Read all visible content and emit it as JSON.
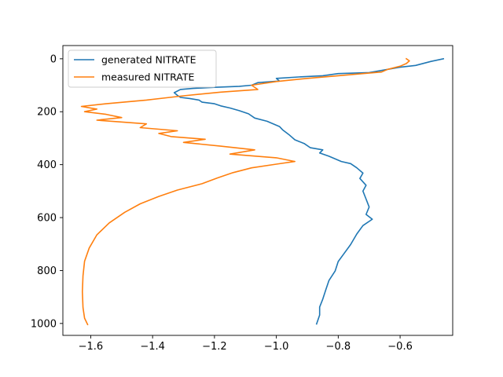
{
  "chart_data": {
    "type": "line",
    "title": "",
    "xlabel": "",
    "ylabel": "",
    "xlim": [
      -1.69,
      -0.43
    ],
    "ylim": [
      1045,
      -50
    ],
    "y_inverted": true,
    "grid": false,
    "legend_position": "top-left",
    "xticks": [
      -1.6,
      -1.4,
      -1.2,
      -1.0,
      -0.8,
      -0.6
    ],
    "xtick_labels": [
      "−1.6",
      "−1.4",
      "−1.2",
      "−1.0",
      "−0.8",
      "−0.6"
    ],
    "yticks": [
      0,
      200,
      400,
      600,
      800,
      1000
    ],
    "ytick_labels": [
      "0",
      "200",
      "400",
      "600",
      "800",
      "1000"
    ],
    "series": [
      {
        "name": "generated NITRATE",
        "color": "#1f77b4",
        "points": [
          [
            -0.46,
            0
          ],
          [
            -0.5,
            10
          ],
          [
            -0.55,
            25
          ],
          [
            -0.6,
            32
          ],
          [
            -0.64,
            40
          ],
          [
            -0.7,
            52
          ],
          [
            -0.8,
            56
          ],
          [
            -0.85,
            64
          ],
          [
            -0.92,
            68
          ],
          [
            -1.0,
            74
          ],
          [
            -0.99,
            84
          ],
          [
            -1.06,
            90
          ],
          [
            -1.08,
            100
          ],
          [
            -1.12,
            104
          ],
          [
            -1.2,
            108
          ],
          [
            -1.27,
            112
          ],
          [
            -1.31,
            116
          ],
          [
            -1.33,
            128
          ],
          [
            -1.32,
            138
          ],
          [
            -1.31,
            146
          ],
          [
            -1.28,
            150
          ],
          [
            -1.25,
            156
          ],
          [
            -1.24,
            164
          ],
          [
            -1.2,
            170
          ],
          [
            -1.18,
            178
          ],
          [
            -1.15,
            186
          ],
          [
            -1.12,
            196
          ],
          [
            -1.09,
            208
          ],
          [
            -1.07,
            224
          ],
          [
            -1.03,
            236
          ],
          [
            -0.99,
            256
          ],
          [
            -0.98,
            268
          ],
          [
            -0.96,
            286
          ],
          [
            -0.94,
            306
          ],
          [
            -0.91,
            320
          ],
          [
            -0.89,
            336
          ],
          [
            -0.85,
            344
          ],
          [
            -0.86,
            356
          ],
          [
            -0.83,
            368
          ],
          [
            -0.79,
            388
          ],
          [
            -0.76,
            396
          ],
          [
            -0.74,
            412
          ],
          [
            -0.72,
            432
          ],
          [
            -0.73,
            452
          ],
          [
            -0.71,
            478
          ],
          [
            -0.72,
            500
          ],
          [
            -0.71,
            530
          ],
          [
            -0.7,
            560
          ],
          [
            -0.71,
            588
          ],
          [
            -0.69,
            606
          ],
          [
            -0.72,
            630
          ],
          [
            -0.74,
            662
          ],
          [
            -0.76,
            702
          ],
          [
            -0.78,
            734
          ],
          [
            -0.8,
            766
          ],
          [
            -0.81,
            802
          ],
          [
            -0.83,
            838
          ],
          [
            -0.84,
            872
          ],
          [
            -0.85,
            908
          ],
          [
            -0.86,
            938
          ],
          [
            -0.86,
            968
          ],
          [
            -0.87,
            1002
          ]
        ]
      },
      {
        "name": "measured NITRATE",
        "color": "#ff7f0e",
        "points": [
          [
            -0.58,
            0
          ],
          [
            -0.57,
            8
          ],
          [
            -0.58,
            18
          ],
          [
            -0.6,
            28
          ],
          [
            -0.64,
            40
          ],
          [
            -0.66,
            50
          ],
          [
            -0.72,
            56
          ],
          [
            -0.8,
            64
          ],
          [
            -0.9,
            74
          ],
          [
            -1.0,
            86
          ],
          [
            -1.08,
            100
          ],
          [
            -1.06,
            116
          ],
          [
            -1.18,
            126
          ],
          [
            -1.3,
            140
          ],
          [
            -1.42,
            156
          ],
          [
            -1.55,
            170
          ],
          [
            -1.63,
            180
          ],
          [
            -1.58,
            190
          ],
          [
            -1.62,
            200
          ],
          [
            -1.55,
            210
          ],
          [
            -1.5,
            222
          ],
          [
            -1.58,
            232
          ],
          [
            -1.42,
            246
          ],
          [
            -1.44,
            260
          ],
          [
            -1.32,
            272
          ],
          [
            -1.38,
            282
          ],
          [
            -1.34,
            294
          ],
          [
            -1.23,
            304
          ],
          [
            -1.3,
            316
          ],
          [
            -1.18,
            330
          ],
          [
            -1.07,
            344
          ],
          [
            -1.15,
            360
          ],
          [
            -1.0,
            374
          ],
          [
            -0.94,
            388
          ],
          [
            -1.0,
            398
          ],
          [
            -1.08,
            412
          ],
          [
            -1.14,
            430
          ],
          [
            -1.19,
            450
          ],
          [
            -1.24,
            472
          ],
          [
            -1.32,
            496
          ],
          [
            -1.38,
            520
          ],
          [
            -1.44,
            548
          ],
          [
            -1.49,
            580
          ],
          [
            -1.54,
            620
          ],
          [
            -1.58,
            665
          ],
          [
            -1.605,
            715
          ],
          [
            -1.62,
            765
          ],
          [
            -1.625,
            820
          ],
          [
            -1.627,
            880
          ],
          [
            -1.625,
            940
          ],
          [
            -1.62,
            980
          ],
          [
            -1.61,
            1004
          ]
        ]
      }
    ]
  }
}
